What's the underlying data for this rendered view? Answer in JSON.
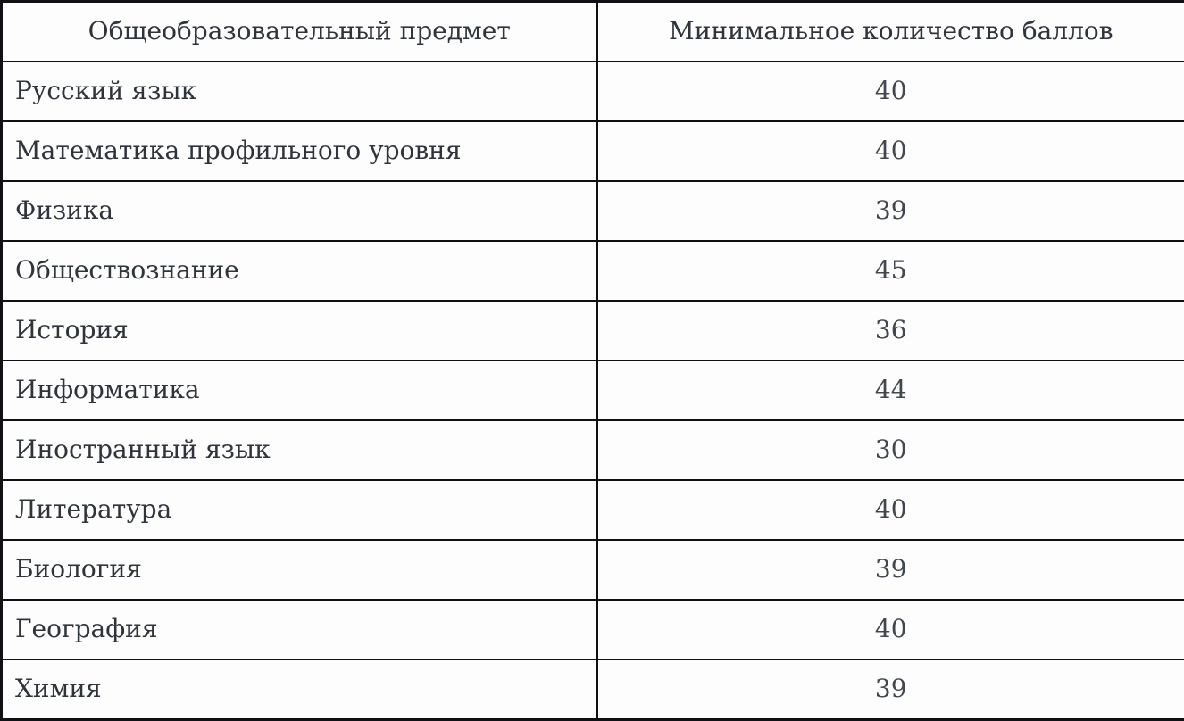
{
  "theme": {
    "border_color": "#101114",
    "cell_background": "#fdfdfe",
    "subject_text_color": "#2f343c",
    "score_text_color": "#41464f"
  },
  "table": {
    "columns": [
      {
        "label": "Общеобразовательный предмет"
      },
      {
        "label": "Минимальное количество баллов"
      }
    ],
    "rows": [
      {
        "subject": "Русский язык",
        "min_score": "40"
      },
      {
        "subject": "Математика профильного уровня",
        "min_score": "40"
      },
      {
        "subject": "Физика",
        "min_score": "39"
      },
      {
        "subject": "Обществознание",
        "min_score": "45"
      },
      {
        "subject": "История",
        "min_score": "36"
      },
      {
        "subject": "Информатика",
        "min_score": "44"
      },
      {
        "subject": "Иностранный язык",
        "min_score": "30"
      },
      {
        "subject": "Литература",
        "min_score": "40"
      },
      {
        "subject": "Биология",
        "min_score": "39"
      },
      {
        "subject": "География",
        "min_score": "40"
      },
      {
        "subject": "Химия",
        "min_score": "39"
      }
    ]
  }
}
